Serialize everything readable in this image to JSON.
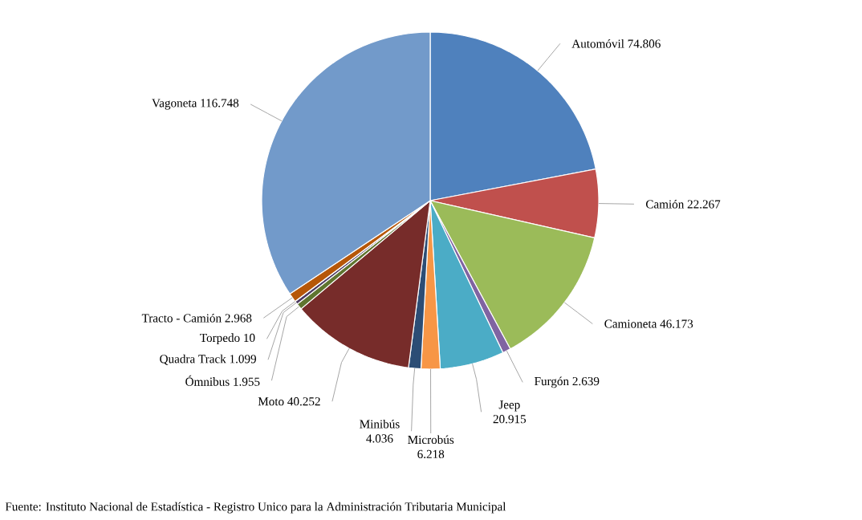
{
  "chart_data": {
    "type": "pie",
    "categories": [
      "Automóvil",
      "Camión",
      "Camioneta",
      "Furgón",
      "Jeep",
      "Microbús",
      "Minibús",
      "Moto",
      "Ómnibus",
      "Quadra Track",
      "Torpedo",
      "Tracto - Camión",
      "Vagoneta"
    ],
    "values": [
      74806,
      22267,
      46173,
      2639,
      20915,
      6218,
      4036,
      40252,
      1955,
      1099,
      10,
      2968,
      116748
    ],
    "value_labels": [
      "74.806",
      "22.267",
      "46.173",
      "2.639",
      "20.915",
      "6.218",
      "4.036",
      "40.252",
      "1.955",
      "1.099",
      "10",
      "2.968",
      "116.748"
    ],
    "colors": [
      "#4f81bd",
      "#c0504d",
      "#9bbb59",
      "#8064a2",
      "#4bacc6",
      "#f79646",
      "#2c4d75",
      "#772c2a",
      "#5f7530",
      "#4d3b62",
      "#276a7c",
      "#b65708",
      "#729aca"
    ],
    "annotations": [
      "Fuente: Instituto Nacional de Estadística - Registro Unico para la Administración Tributaria Municipal"
    ]
  }
}
